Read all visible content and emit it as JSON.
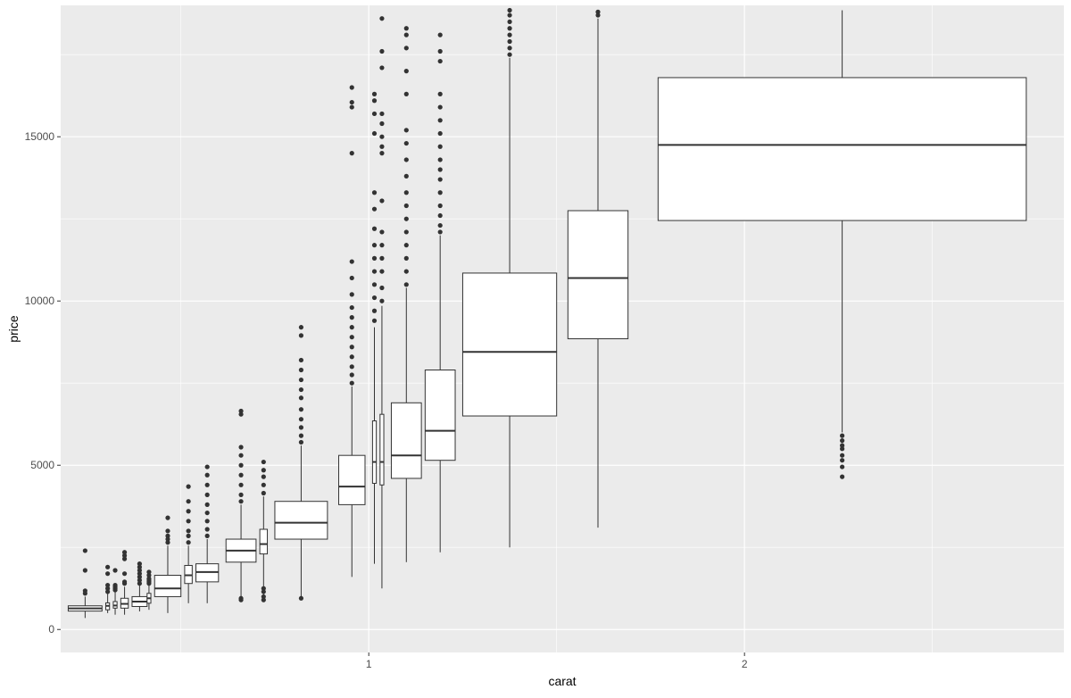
{
  "chart_data": {
    "type": "boxplot",
    "title": "",
    "xlabel": "carat",
    "ylabel": "price",
    "xlim": [
      0.18,
      2.85
    ],
    "ylim": [
      -700,
      19000
    ],
    "x_ticks": [
      1,
      2
    ],
    "x_tick_labels": [
      "1",
      "2"
    ],
    "x_minor_gridlines": [
      0.5,
      1.5,
      2.5
    ],
    "y_ticks": [
      0,
      5000,
      10000,
      15000
    ],
    "y_tick_labels": [
      "0",
      "5000",
      "10000",
      "15000"
    ],
    "y_minor_gridlines": [
      2500,
      7500,
      12500,
      17500
    ],
    "grid": true,
    "legend": "none",
    "colors": {
      "panel": "#EBEBEB",
      "gridline": "#FFFFFF",
      "box_fill": "#FFFFFF",
      "box_stroke": "#333333",
      "outlier": "#333333",
      "axis_text": "#4D4D4D",
      "axis_title": "#000000"
    },
    "boxes": [
      {
        "x_min": 0.2,
        "x_max": 0.29,
        "low": 350,
        "q1": 560,
        "median": 640,
        "q3": 720,
        "high": 1000,
        "outliers": [
          1100,
          1180,
          1800,
          2400
        ]
      },
      {
        "x_min": 0.3,
        "x_max": 0.31,
        "low": 500,
        "q1": 600,
        "median": 720,
        "q3": 810,
        "high": 1100,
        "outliers": [
          1150,
          1250,
          1350,
          1700,
          1900
        ]
      },
      {
        "x_min": 0.32,
        "x_max": 0.33,
        "low": 450,
        "q1": 650,
        "median": 730,
        "q3": 850,
        "high": 1150,
        "outliers": [
          1200,
          1250,
          1300,
          1350,
          1800
        ]
      },
      {
        "x_min": 0.34,
        "x_max": 0.36,
        "low": 450,
        "q1": 650,
        "median": 780,
        "q3": 950,
        "high": 1300,
        "outliers": [
          1400,
          1450,
          1700,
          2150,
          2250,
          2350
        ]
      },
      {
        "x_min": 0.37,
        "x_max": 0.41,
        "low": 550,
        "q1": 700,
        "median": 850,
        "q3": 1000,
        "high": 1350,
        "outliers": [
          1400,
          1500,
          1600,
          1700,
          1800,
          1900,
          2000
        ]
      },
      {
        "x_min": 0.41,
        "x_max": 0.42,
        "low": 600,
        "q1": 800,
        "median": 950,
        "q3": 1100,
        "high": 1350,
        "outliers": [
          1400,
          1450,
          1500,
          1550,
          1650,
          1750
        ]
      },
      {
        "x_min": 0.43,
        "x_max": 0.5,
        "low": 500,
        "q1": 1000,
        "median": 1250,
        "q3": 1650,
        "high": 2550,
        "outliers": [
          2650,
          2750,
          2850,
          3000,
          3400
        ]
      },
      {
        "x_min": 0.51,
        "x_max": 0.53,
        "low": 800,
        "q1": 1400,
        "median": 1650,
        "q3": 1950,
        "high": 2550,
        "outliers": [
          2650,
          2850,
          3000,
          3300,
          3600,
          3900,
          4350
        ]
      },
      {
        "x_min": 0.54,
        "x_max": 0.6,
        "low": 800,
        "q1": 1450,
        "median": 1750,
        "q3": 2000,
        "high": 2750,
        "outliers": [
          2850,
          3050,
          3300,
          3550,
          3800,
          4100,
          4400,
          4700,
          4950
        ]
      },
      {
        "x_min": 0.62,
        "x_max": 0.7,
        "low": 1000,
        "q1": 2050,
        "median": 2400,
        "q3": 2750,
        "high": 3800,
        "outliers": [
          900,
          950,
          3900,
          4100,
          4400,
          4700,
          5000,
          5300,
          5550,
          6550,
          6650
        ]
      },
      {
        "x_min": 0.71,
        "x_max": 0.73,
        "low": 950,
        "q1": 2300,
        "median": 2600,
        "q3": 3050,
        "high": 4050,
        "outliers": [
          900,
          1000,
          1150,
          1250,
          4150,
          4400,
          4650,
          4850,
          5100
        ]
      },
      {
        "x_min": 0.75,
        "x_max": 0.89,
        "low": 1000,
        "q1": 2750,
        "median": 3250,
        "q3": 3900,
        "high": 5600,
        "outliers": [
          950,
          5700,
          5900,
          6150,
          6400,
          6700,
          7050,
          7300,
          7600,
          7900,
          8200,
          8950,
          9200
        ]
      },
      {
        "x_min": 0.92,
        "x_max": 0.99,
        "low": 1600,
        "q1": 3800,
        "median": 4350,
        "q3": 5300,
        "high": 7400,
        "outliers": [
          7500,
          7750,
          8000,
          8300,
          8600,
          8900,
          9200,
          9500,
          9800,
          10200,
          10700,
          11200,
          14500,
          15900,
          16050,
          16500
        ]
      },
      {
        "x_min": 1.01,
        "x_max": 1.02,
        "low": 2000,
        "q1": 4450,
        "median": 5100,
        "q3": 6350,
        "high": 9200,
        "outliers": [
          9400,
          9700,
          10100,
          10500,
          10900,
          11300,
          11700,
          12200,
          12800,
          13300,
          15100,
          15700,
          16100,
          16300
        ]
      },
      {
        "x_min": 1.03,
        "x_max": 1.04,
        "low": 1250,
        "q1": 4400,
        "median": 5100,
        "q3": 6550,
        "high": 9850,
        "outliers": [
          10000,
          10400,
          10900,
          11300,
          11700,
          12100,
          13050,
          14500,
          14700,
          15000,
          15400,
          15700,
          17100,
          17600,
          18600
        ]
      },
      {
        "x_min": 1.06,
        "x_max": 1.14,
        "low": 2050,
        "q1": 4600,
        "median": 5300,
        "q3": 6900,
        "high": 10400,
        "outliers": [
          10500,
          10900,
          11300,
          11700,
          12100,
          12500,
          12900,
          13300,
          13800,
          14300,
          14800,
          15200,
          16300,
          17000,
          17700,
          18100,
          18300
        ]
      },
      {
        "x_min": 1.15,
        "x_max": 1.23,
        "low": 2350,
        "q1": 5150,
        "median": 6050,
        "q3": 7900,
        "high": 12000,
        "outliers": [
          12100,
          12300,
          12600,
          12900,
          13300,
          13700,
          14000,
          14300,
          14700,
          15100,
          15500,
          15900,
          16300,
          17300,
          17600,
          18100
        ]
      },
      {
        "x_min": 1.25,
        "x_max": 1.5,
        "low": 2500,
        "q1": 6500,
        "median": 8450,
        "q3": 10850,
        "high": 17400,
        "outliers": [
          17500,
          17700,
          17900,
          18100,
          18300,
          18500,
          18700,
          18850
        ]
      },
      {
        "x_min": 1.53,
        "x_max": 1.69,
        "low": 3100,
        "q1": 8850,
        "median": 10700,
        "q3": 12750,
        "high": 18600,
        "outliers": [
          18700,
          18800
        ]
      },
      {
        "x_min": 1.77,
        "x_max": 2.75,
        "low": 6000,
        "q1": 12450,
        "median": 14750,
        "q3": 16800,
        "high": 18850,
        "outliers": [
          4650,
          4950,
          5150,
          5300,
          5500,
          5600,
          5750,
          5900
        ]
      }
    ]
  }
}
